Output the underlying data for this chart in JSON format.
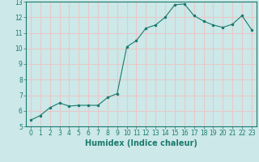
{
  "x": [
    0,
    1,
    2,
    3,
    4,
    5,
    6,
    7,
    8,
    9,
    10,
    11,
    12,
    13,
    14,
    15,
    16,
    17,
    18,
    19,
    20,
    21,
    22,
    23
  ],
  "y": [
    5.4,
    5.7,
    6.2,
    6.5,
    6.3,
    6.35,
    6.35,
    6.35,
    6.85,
    7.1,
    10.1,
    10.5,
    11.3,
    11.5,
    12.0,
    12.8,
    12.85,
    12.1,
    11.75,
    11.5,
    11.35,
    11.55,
    12.1,
    11.2
  ],
  "line_color": "#1a7a6e",
  "marker_color": "#1a7a6e",
  "bg_color": "#cce8e8",
  "grid_color": "#e8c8c8",
  "xlabel": "Humidex (Indice chaleur)",
  "ylim": [
    5,
    13
  ],
  "xlim_min": -0.5,
  "xlim_max": 23.5,
  "yticks": [
    5,
    6,
    7,
    8,
    9,
    10,
    11,
    12,
    13
  ],
  "xticks": [
    0,
    1,
    2,
    3,
    4,
    5,
    6,
    7,
    8,
    9,
    10,
    11,
    12,
    13,
    14,
    15,
    16,
    17,
    18,
    19,
    20,
    21,
    22,
    23
  ],
  "tick_fontsize": 5.5,
  "xlabel_fontsize": 7.0
}
